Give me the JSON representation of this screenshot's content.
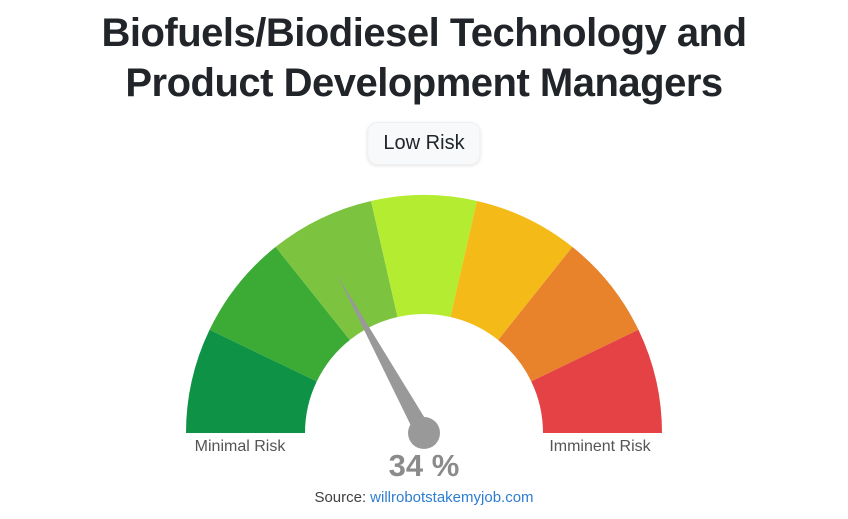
{
  "header": {
    "title_line1": "Biofuels/Biodiesel Technology and",
    "title_line2": "Product Development Managers",
    "risk_badge": "Low Risk"
  },
  "chart_data": {
    "type": "gauge",
    "title": "Biofuels/Biodiesel Technology and Product Development Managers",
    "value": 34,
    "unit": "%",
    "min": 0,
    "max": 100,
    "value_label": "34 %",
    "risk_level_label": "Low Risk",
    "left_label": "Minimal Risk",
    "right_label": "Imminent Risk",
    "segments": [
      {
        "name": "segment-1",
        "color": "#0E9246"
      },
      {
        "name": "segment-2",
        "color": "#3BAB36"
      },
      {
        "name": "segment-3",
        "color": "#7CC43F"
      },
      {
        "name": "segment-4",
        "color": "#B4EC31"
      },
      {
        "name": "segment-5",
        "color": "#F4BB18"
      },
      {
        "name": "segment-6",
        "color": "#E8832C"
      },
      {
        "name": "segment-7",
        "color": "#E44244"
      }
    ],
    "needle_color": "#999999",
    "value_color": "#8B8B8B",
    "label_color": "#545454"
  },
  "footer": {
    "source_prefix": "Source:",
    "source_link_text": "willrobotstakemyjob.com",
    "link_color": "#2D7ED3"
  }
}
